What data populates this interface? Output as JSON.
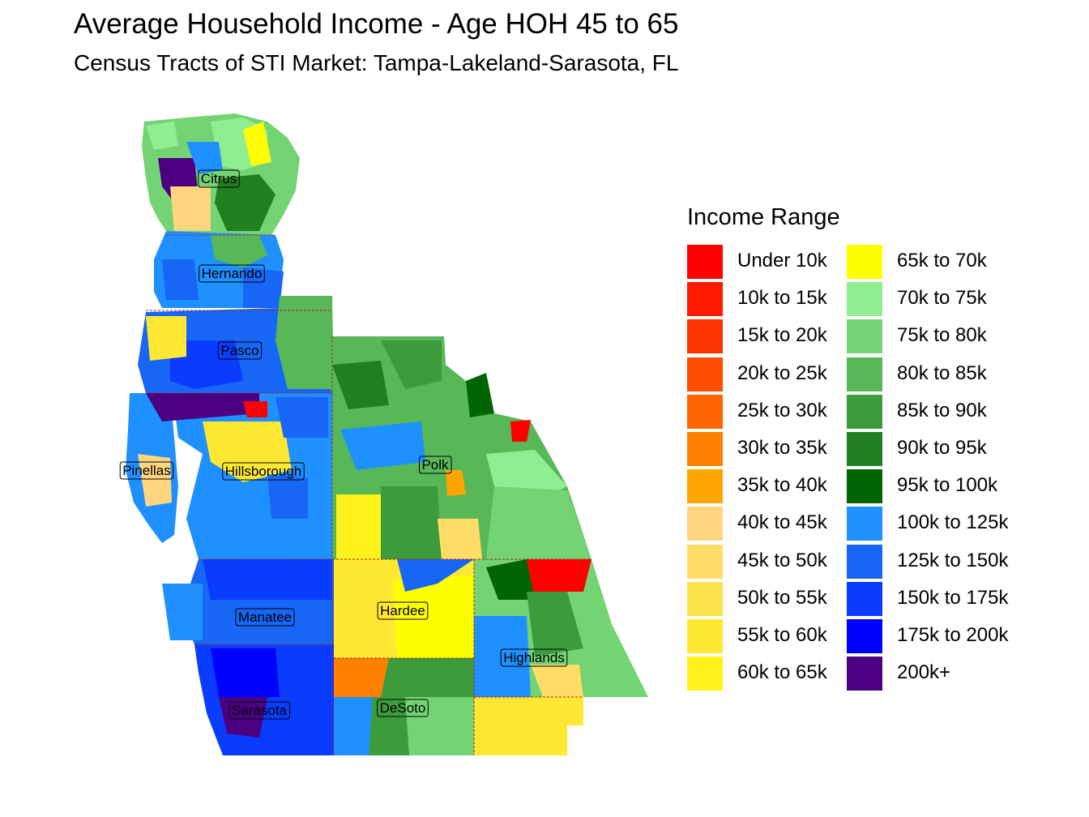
{
  "title": "Average Household Income - Age HOH 45 to 65",
  "subtitle": "Census Tracts of STI Market: Tampa-Lakeland-Sarasota, FL",
  "legend": {
    "title": "Income Range",
    "items": [
      {
        "label": "Under 10k",
        "color": "#ff0000"
      },
      {
        "label": "10k to 15k",
        "color": "#ff1a00"
      },
      {
        "label": "15k to 20k",
        "color": "#ff3300"
      },
      {
        "label": "20k to 25k",
        "color": "#ff4d00"
      },
      {
        "label": "25k to 30k",
        "color": "#ff6600"
      },
      {
        "label": "30k to 35k",
        "color": "#ff8000"
      },
      {
        "label": "35k to 40k",
        "color": "#ffa500"
      },
      {
        "label": "40k to 45k",
        "color": "#ffd580"
      },
      {
        "label": "45k to 50k",
        "color": "#ffdd66"
      },
      {
        "label": "50k to 55k",
        "color": "#ffe34d"
      },
      {
        "label": "55k to 60k",
        "color": "#ffe833"
      },
      {
        "label": "60k to 65k",
        "color": "#fff21a"
      },
      {
        "label": "65k to 70k",
        "color": "#ffff00"
      },
      {
        "label": "70k to 75k",
        "color": "#90ee90"
      },
      {
        "label": "75k to 80k",
        "color": "#74d474"
      },
      {
        "label": "80k to 85k",
        "color": "#58b858"
      },
      {
        "label": "85k to 90k",
        "color": "#3c9c3c"
      },
      {
        "label": "90k to 95k",
        "color": "#208020"
      },
      {
        "label": "95k to 100k",
        "color": "#006400"
      },
      {
        "label": "100k to 125k",
        "color": "#1e90ff"
      },
      {
        "label": "125k to 150k",
        "color": "#1766f5"
      },
      {
        "label": "150k to 175k",
        "color": "#0a3cff"
      },
      {
        "label": "175k to 200k",
        "color": "#0000ff"
      },
      {
        "label": "200k+",
        "color": "#4b0082"
      }
    ]
  },
  "counties": [
    {
      "name": "Citrus"
    },
    {
      "name": "Hernando"
    },
    {
      "name": "Pasco"
    },
    {
      "name": "Pinellas"
    },
    {
      "name": "Hillsborough"
    },
    {
      "name": "Polk"
    },
    {
      "name": "Manatee"
    },
    {
      "name": "Hardee"
    },
    {
      "name": "Highlands"
    },
    {
      "name": "Sarasota"
    },
    {
      "name": "DeSoto"
    }
  ]
}
